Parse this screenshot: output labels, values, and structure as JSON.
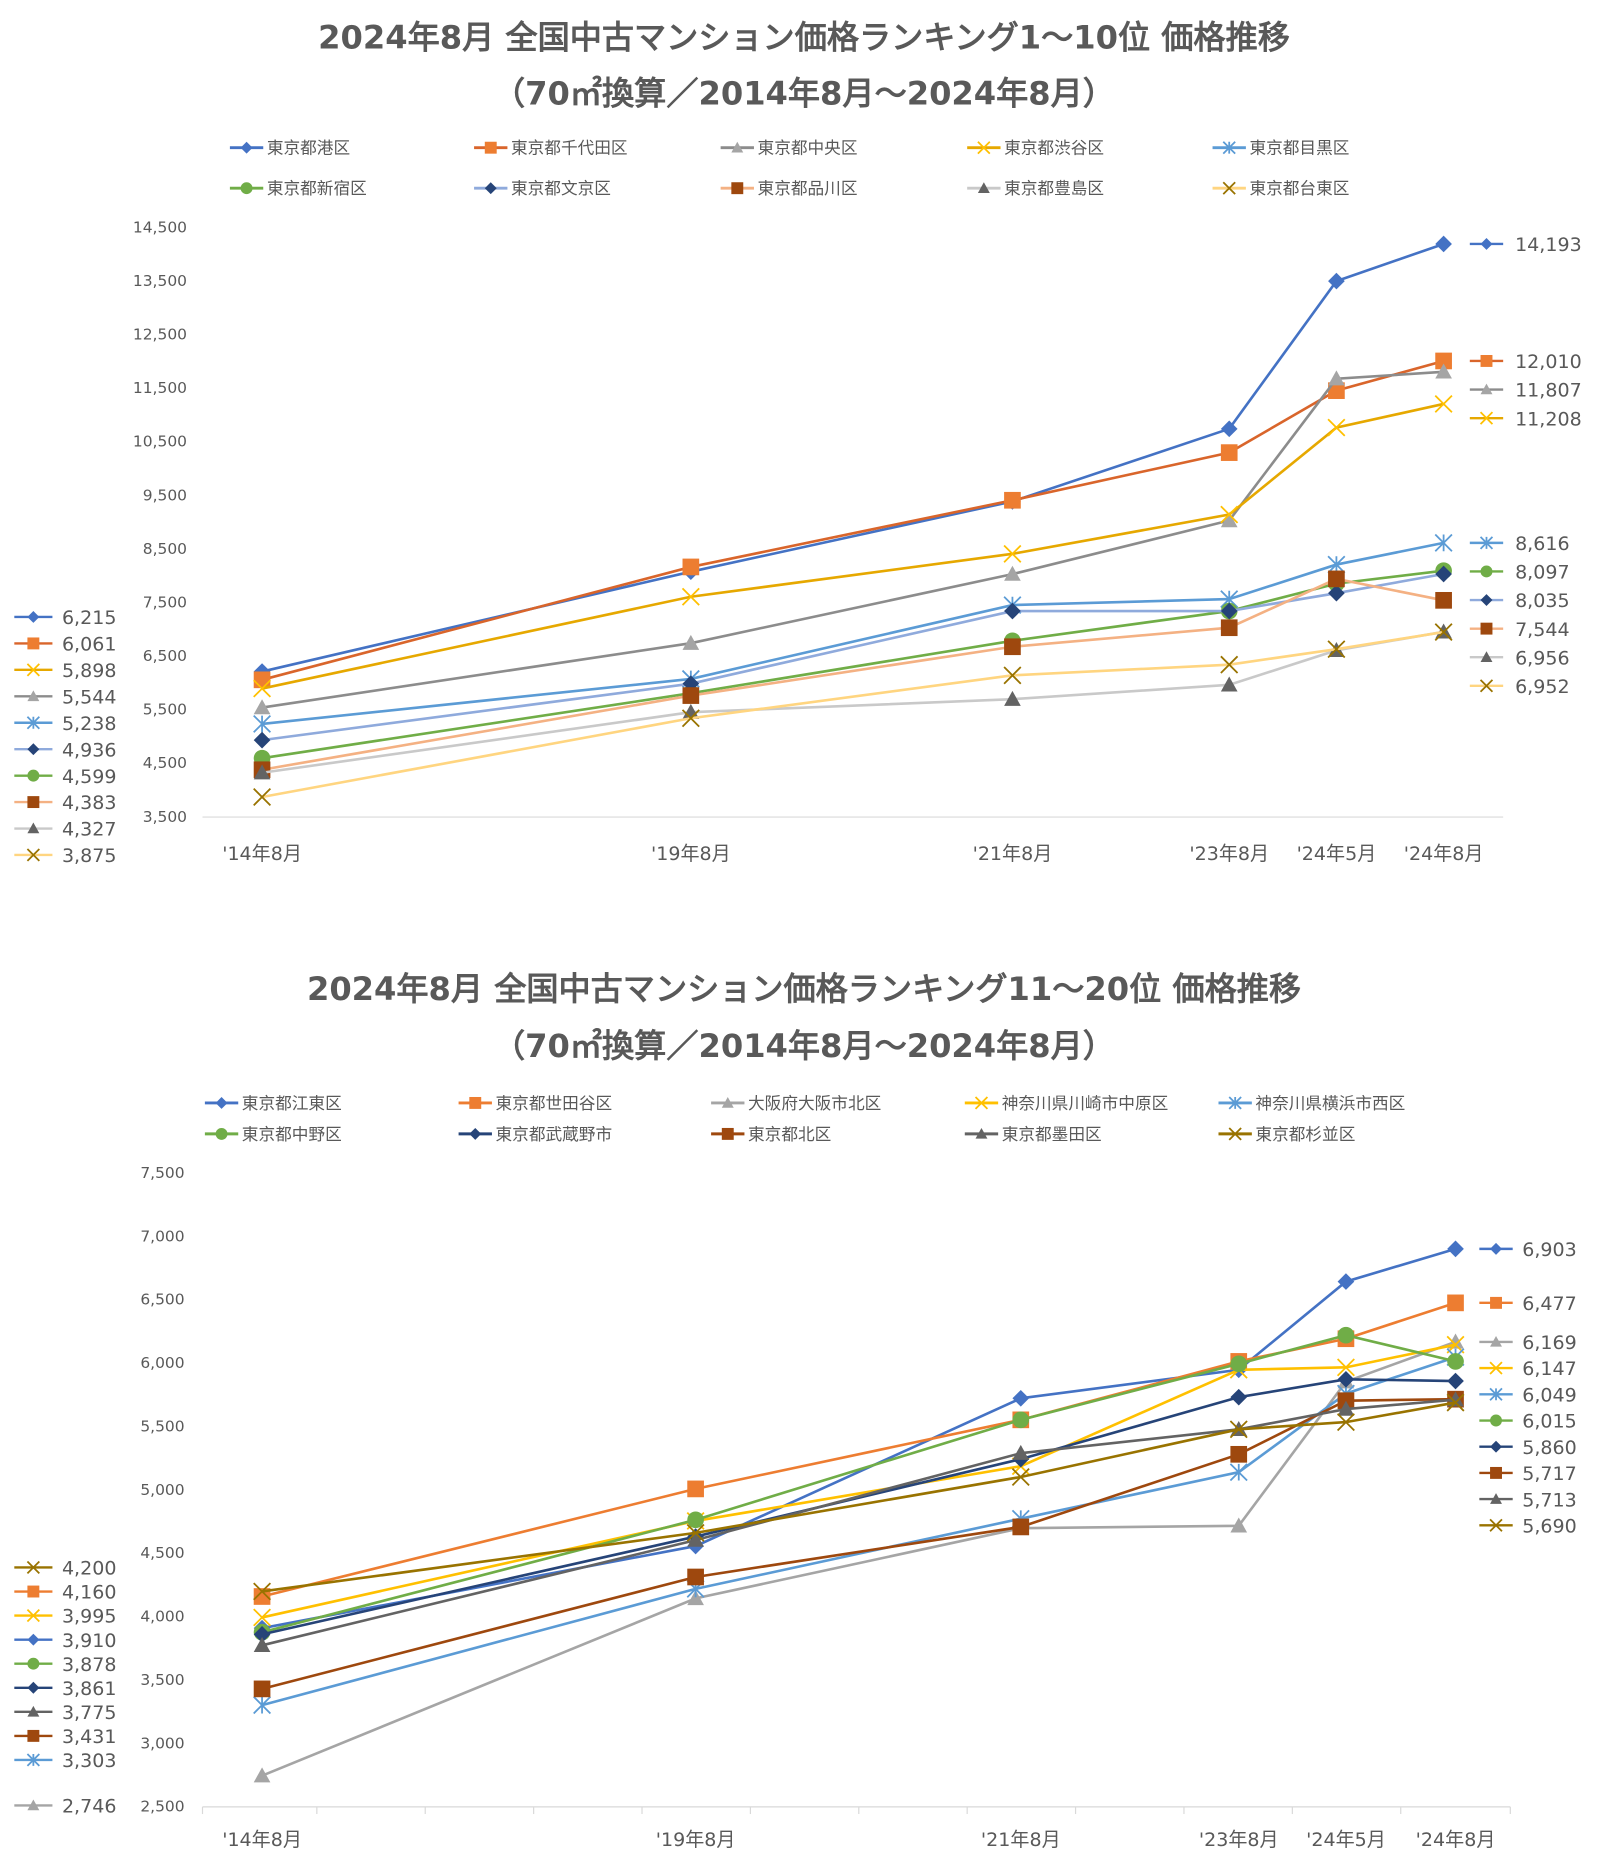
{
  "chart_data": [
    {
      "type": "line",
      "title": [
        "2024年8月 全国中古マンション価格ランキング1～10位 価格推移",
        "（70㎡換算／2014年8月～2024年8月）"
      ],
      "xlabel": "",
      "ylabel": "",
      "categories": [
        "'14年8月",
        "'19年8月",
        "'21年8月",
        "'23年8月",
        "'24年5月",
        "'24年8月"
      ],
      "ylim": [
        3500,
        14500
      ],
      "yticks": [
        3500,
        4500,
        5500,
        6500,
        7500,
        8500,
        9500,
        10500,
        11500,
        12500,
        13500,
        14500
      ],
      "ytick_labels": [
        "3,500",
        "4,500",
        "5,500",
        "6,500",
        "7,500",
        "8,500",
        "9,500",
        "10,500",
        "11,500",
        "12,500",
        "13,500",
        "14,500"
      ],
      "legend_position": "top",
      "series": [
        {
          "name": "東京都港区",
          "marker": "diamond",
          "color": "#4472C4",
          "marker_color": "#4472C4",
          "values": [
            6215,
            8078,
            9389,
            10744,
            13500,
            14193
          ]
        },
        {
          "name": "東京都千代田区",
          "marker": "square",
          "color": "#D9652B",
          "marker_color": "#ED7D31",
          "values": [
            6061,
            8167,
            9411,
            10300,
            11456,
            12010
          ]
        },
        {
          "name": "東京都中央区",
          "marker": "triangle",
          "color": "#8C8C8C",
          "marker_color": "#A5A5A5",
          "values": [
            5544,
            6744,
            8033,
            9033,
            11678,
            11807
          ]
        },
        {
          "name": "東京都渋谷区",
          "marker": "x",
          "color": "#E6A800",
          "marker_color": "#FFC000",
          "values": [
            5898,
            7611,
            8411,
            9144,
            10767,
            11208
          ]
        },
        {
          "name": "東京都目黒区",
          "marker": "star",
          "color": "#5B9BD5",
          "marker_color": "#5B9BD5",
          "values": [
            5238,
            6078,
            7456,
            7567,
            8211,
            8616
          ]
        },
        {
          "name": "東京都新宿区",
          "marker": "circle",
          "color": "#70AD47",
          "marker_color": "#70AD47",
          "values": [
            4599,
            5811,
            6789,
            7344,
            7856,
            8097
          ]
        },
        {
          "name": "東京都文京区",
          "marker": "diamond",
          "color": "#8FAADC",
          "marker_color": "#264478",
          "values": [
            4936,
            5989,
            7344,
            7344,
            7678,
            8035
          ]
        },
        {
          "name": "東京都品川区",
          "marker": "square",
          "color": "#F4B183",
          "marker_color": "#9E480E",
          "values": [
            4383,
            5767,
            6678,
            7033,
            7944,
            7544
          ]
        },
        {
          "name": "東京都豊島区",
          "marker": "triangle",
          "color": "#C9C9C9",
          "marker_color": "#636363",
          "values": [
            4327,
            5456,
            5700,
            5967,
            6611,
            6956
          ]
        },
        {
          "name": "東京都台東区",
          "marker": "x",
          "color": "#FFD580",
          "marker_color": "#997300",
          "values": [
            3875,
            5344,
            6144,
            6344,
            6633,
            6952
          ]
        }
      ]
    },
    {
      "type": "line",
      "title": [
        "2024年8月 全国中古マンション価格ランキング11～20位 価格推移",
        "（70㎡換算／2014年8月～2024年8月）"
      ],
      "xlabel": "",
      "ylabel": "",
      "categories": [
        "'14年8月",
        "'19年8月",
        "'21年8月",
        "'23年8月",
        "'24年5月",
        "'24年8月"
      ],
      "ylim": [
        2500,
        7500
      ],
      "yticks": [
        2500,
        3000,
        3500,
        4000,
        4500,
        5000,
        5500,
        6000,
        6500,
        7000,
        7500
      ],
      "ytick_labels": [
        "2,500",
        "3,000",
        "3,500",
        "4,000",
        "4,500",
        "5,000",
        "5,500",
        "6,000",
        "6,500",
        "7,000",
        "7,500"
      ],
      "legend_position": "top",
      "series": [
        {
          "name": "東京都江東区",
          "marker": "diamond",
          "color": "#4472C4",
          "marker_color": "#4472C4",
          "values": [
            3910,
            4558,
            5724,
            5949,
            6645,
            6903
          ]
        },
        {
          "name": "東京都世田谷区",
          "marker": "square",
          "color": "#ED7D31",
          "marker_color": "#ED7D31",
          "values": [
            4160,
            5009,
            5554,
            6015,
            6194,
            6477
          ]
        },
        {
          "name": "大阪府大阪市北区",
          "marker": "triangle",
          "color": "#A5A5A5",
          "marker_color": "#A5A5A5",
          "values": [
            2746,
            4145,
            4699,
            4718,
            5855,
            6169
          ]
        },
        {
          "name": "神奈川県川崎市中原区",
          "marker": "x",
          "color": "#FFC000",
          "marker_color": "#FFC000",
          "values": [
            3995,
            4756,
            5188,
            5949,
            5968,
            6147
          ]
        },
        {
          "name": "神奈川県横浜市西区",
          "marker": "star",
          "color": "#5B9BD5",
          "marker_color": "#5B9BD5",
          "values": [
            3303,
            4220,
            4774,
            5141,
            5761,
            6049
          ]
        },
        {
          "name": "東京都中野区",
          "marker": "circle",
          "color": "#70AD47",
          "marker_color": "#70AD47",
          "values": [
            3878,
            4765,
            5554,
            5996,
            6222,
            6015
          ]
        },
        {
          "name": "東京都武蔵野市",
          "marker": "diamond",
          "color": "#264478",
          "marker_color": "#264478",
          "values": [
            3861,
            4633,
            5244,
            5733,
            5874,
            5860
          ]
        },
        {
          "name": "東京都北区",
          "marker": "square",
          "color": "#9E480E",
          "marker_color": "#9E480E",
          "values": [
            3431,
            4314,
            4709,
            5282,
            5705,
            5717
          ]
        },
        {
          "name": "東京都墨田区",
          "marker": "triangle",
          "color": "#636363",
          "marker_color": "#636363",
          "values": [
            3775,
            4605,
            5291,
            5479,
            5639,
            5713
          ]
        },
        {
          "name": "東京都杉並区",
          "marker": "x",
          "color": "#997300",
          "marker_color": "#997300",
          "values": [
            4200,
            4662,
            5103,
            5479,
            5536,
            5690
          ]
        }
      ]
    }
  ]
}
